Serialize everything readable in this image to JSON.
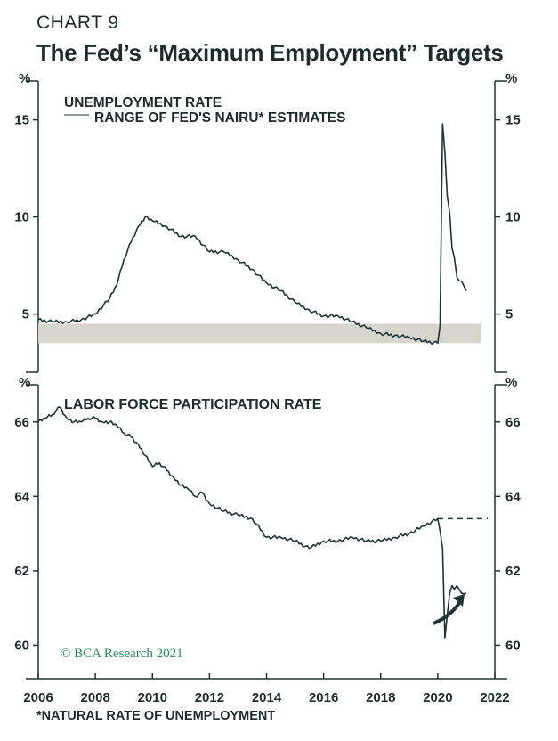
{
  "header": {
    "label": "CHART 9",
    "title": "The Fed’s “Maximum Employment” Targets"
  },
  "footnote": "*NATURAL RATE OF UNEMPLOYMENT",
  "watermark": "© BCA Research 2021",
  "colors": {
    "line": "#1f3535",
    "band": "#d6d6ce",
    "watermark": "#2a8a5a"
  },
  "chart_data": [
    {
      "type": "line",
      "panel": "top",
      "unit_label": "%",
      "yticks": [
        5,
        10,
        15
      ],
      "ylim": [
        2.0,
        17.0
      ],
      "xlim": [
        2006,
        2022
      ],
      "legend": {
        "series_label": "UNEMPLOYMENT RATE",
        "band_label": "RANGE OF FED'S NAIRU* ESTIMATES"
      },
      "band": {
        "name": "RANGE OF FED'S NAIRU* ESTIMATES",
        "low": 3.5,
        "high": 4.5,
        "x_from": 2006,
        "x_to": 2021.5
      },
      "series": [
        {
          "name": "UNEMPLOYMENT RATE",
          "x": [
            2006.0,
            2006.5,
            2007.0,
            2007.5,
            2008.0,
            2008.5,
            2008.75,
            2009.0,
            2009.25,
            2009.5,
            2009.75,
            2010.0,
            2010.5,
            2011.0,
            2011.5,
            2012.0,
            2012.5,
            2013.0,
            2013.5,
            2014.0,
            2014.5,
            2015.0,
            2015.5,
            2016.0,
            2016.5,
            2017.0,
            2017.5,
            2018.0,
            2018.5,
            2019.0,
            2019.5,
            2020.0,
            2020.08,
            2020.17,
            2020.25,
            2020.33,
            2020.42,
            2020.5,
            2020.58,
            2020.67,
            2020.75,
            2020.83,
            2021.0
          ],
          "y": [
            4.7,
            4.6,
            4.6,
            4.7,
            5.0,
            5.8,
            6.5,
            7.8,
            8.7,
            9.5,
            10.0,
            9.8,
            9.5,
            9.0,
            9.0,
            8.2,
            8.2,
            7.8,
            7.3,
            6.6,
            6.2,
            5.6,
            5.2,
            4.9,
            4.9,
            4.6,
            4.3,
            4.0,
            3.9,
            3.8,
            3.6,
            3.5,
            4.4,
            14.8,
            13.3,
            11.1,
            10.2,
            8.4,
            7.9,
            6.9,
            6.7,
            6.7,
            6.2
          ]
        }
      ]
    },
    {
      "type": "line",
      "panel": "bottom",
      "unit_label": "%",
      "yticks": [
        60,
        62,
        64,
        66
      ],
      "ylim": [
        59.1,
        67.0
      ],
      "xlim": [
        2006,
        2022
      ],
      "xticks": [
        "2006",
        "2008",
        "2010",
        "2012",
        "2014",
        "2016",
        "2018",
        "2020",
        "2022"
      ],
      "label": "LABOR FORCE PARTICIPATION RATE",
      "reference_line": {
        "y": 63.4,
        "x_from": 2020.0,
        "x_to": 2021.75,
        "style": "dashed"
      },
      "series": [
        {
          "name": "LABOR FORCE PARTICIPATION RATE",
          "x": [
            2006.0,
            2006.25,
            2006.5,
            2006.75,
            2007.0,
            2007.25,
            2007.5,
            2007.75,
            2008.0,
            2008.25,
            2008.5,
            2008.75,
            2009.0,
            2009.25,
            2009.5,
            2009.75,
            2010.0,
            2010.25,
            2010.5,
            2010.75,
            2011.0,
            2011.25,
            2011.5,
            2011.75,
            2012.0,
            2012.5,
            2013.0,
            2013.5,
            2014.0,
            2014.5,
            2015.0,
            2015.5,
            2016.0,
            2016.5,
            2017.0,
            2017.5,
            2018.0,
            2018.5,
            2019.0,
            2019.5,
            2020.0,
            2020.17,
            2020.25,
            2020.33,
            2020.42,
            2020.5,
            2020.58,
            2020.67,
            2020.75,
            2020.83,
            2021.0
          ],
          "y": [
            66.0,
            66.1,
            66.2,
            66.4,
            66.1,
            66.0,
            66.0,
            66.1,
            66.1,
            66.0,
            66.0,
            65.9,
            65.7,
            65.6,
            65.4,
            65.1,
            64.8,
            64.9,
            64.7,
            64.5,
            64.3,
            64.2,
            64.0,
            64.1,
            63.8,
            63.6,
            63.5,
            63.4,
            62.9,
            62.9,
            62.8,
            62.6,
            62.8,
            62.8,
            62.9,
            62.8,
            62.8,
            62.9,
            63.0,
            63.2,
            63.4,
            62.6,
            60.2,
            60.8,
            61.4,
            61.6,
            61.5,
            61.6,
            61.5,
            61.4,
            61.4
          ]
        }
      ]
    }
  ]
}
